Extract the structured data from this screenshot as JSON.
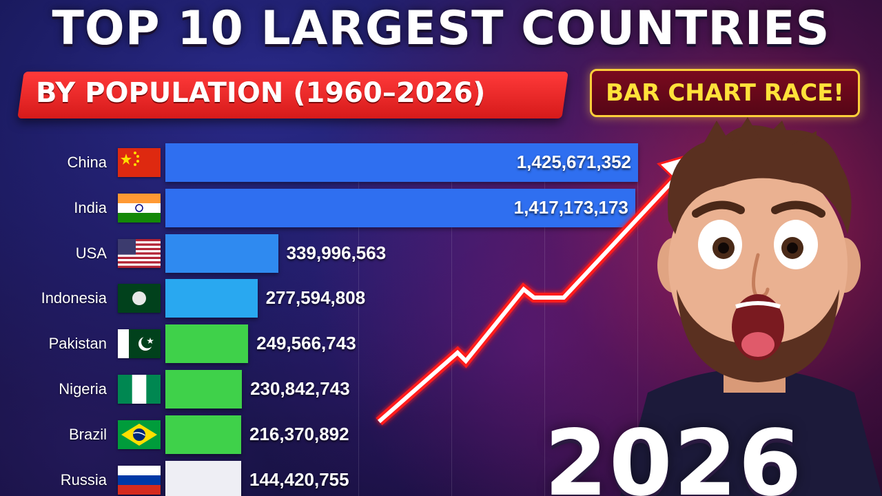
{
  "title": "TOP 10 LARGEST COUNTRIES",
  "subtitle": "BY POPULATION (1960–2026)",
  "badge": "BAR CHART RACE!",
  "year": "2026",
  "colors": {
    "bar_blue": "#2f6ff0",
    "bar_lightblue": "#29a8f0",
    "bar_green": "#3fd14a",
    "bar_white": "#eeeef4",
    "title_banner": "#e12020",
    "badge_text": "#ffe23a",
    "arrow": "#ff1a1a"
  },
  "chart_data": {
    "type": "bar",
    "orientation": "horizontal",
    "categories": [
      "China",
      "India",
      "USA",
      "Indonesia",
      "Pakistan",
      "Nigeria",
      "Brazil",
      "Russia"
    ],
    "values": [
      1425671352,
      1417173173,
      339996563,
      277594808,
      249566743,
      230842743,
      216370892,
      144420755
    ],
    "value_labels": [
      "1,425,671,352",
      "1,417,173,173",
      "339,996,563",
      "277,594,808",
      "249,566,743",
      "230,842,743",
      "216,370,892",
      "144,420,755"
    ],
    "flag_icons": [
      "china-flag-icon",
      "india-flag-icon",
      "usa-flag-icon",
      "indonesia-flag-icon",
      "pakistan-flag-icon",
      "nigeria-flag-icon",
      "brazil-flag-icon",
      "russia-flag-icon"
    ],
    "bar_colors": [
      "#2f6ff0",
      "#2f6ff0",
      "#2f8af0",
      "#29a8f0",
      "#3fd14a",
      "#3fd14a",
      "#3fd14a",
      "#eeeef4"
    ],
    "title": "",
    "xlabel": "",
    "ylabel": "",
    "grid": true
  }
}
